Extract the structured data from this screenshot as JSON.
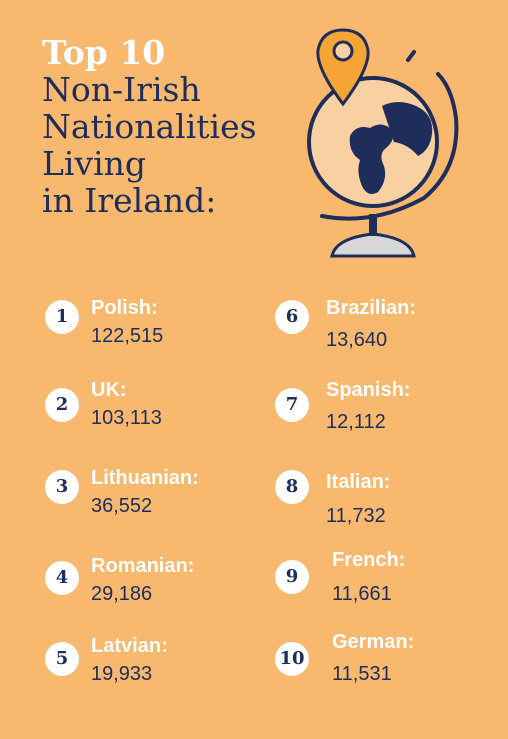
{
  "title": {
    "line1": "Top 10",
    "line2": "Non-Irish",
    "line3": "Nationalities",
    "line4": "Living",
    "line5": "in Ireland:"
  },
  "colors": {
    "background": "#f8b96e",
    "navy": "#1f2d5a",
    "white": "#ffffff",
    "globe_face": "#f9d0a2",
    "pin": "#f5a536",
    "stand": "#d8d8d8"
  },
  "icon": {
    "name": "globe-with-location-pin-icon"
  },
  "items": [
    {
      "rank": "1",
      "country": "Polish:",
      "value": "122,515"
    },
    {
      "rank": "2",
      "country": "UK:",
      "value": "103,113"
    },
    {
      "rank": "3",
      "country": "Lithuanian:",
      "value": "36,552"
    },
    {
      "rank": "4",
      "country": "Romanian:",
      "value": "29,186"
    },
    {
      "rank": "5",
      "country": "Latvian:",
      "value": "19,933"
    },
    {
      "rank": "6",
      "country": "Brazilian:",
      "value": "13,640"
    },
    {
      "rank": "7",
      "country": "Spanish:",
      "value": "12,112"
    },
    {
      "rank": "8",
      "country": "Italian:",
      "value": "11,732"
    },
    {
      "rank": "9",
      "country": "French:",
      "value": "11,661"
    },
    {
      "rank": "10",
      "country": "German:",
      "value": "11,531"
    }
  ]
}
